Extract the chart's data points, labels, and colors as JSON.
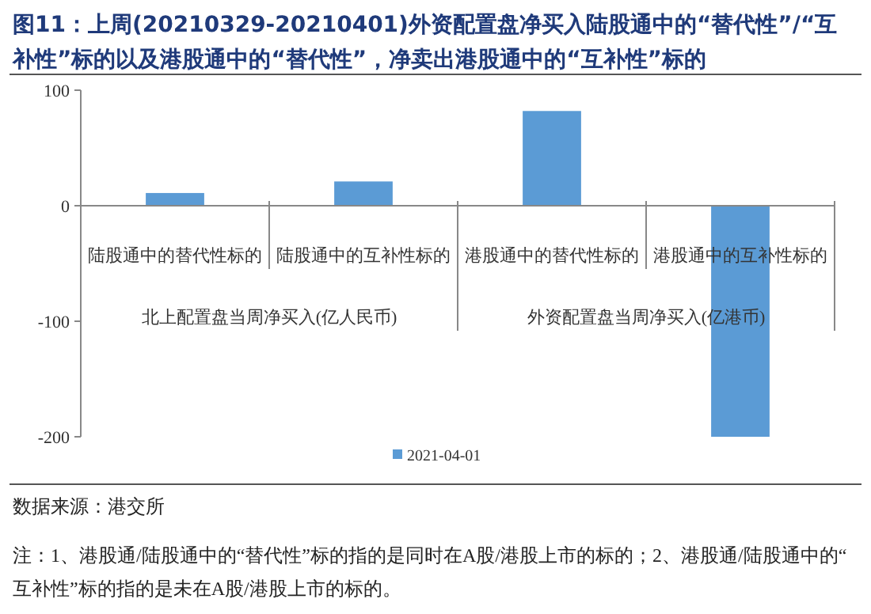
{
  "chart_data": {
    "type": "bar",
    "title": "图11：上周(20210329-20210401)外资配置盘净买入陆股通中的“替代性”/“互补性”标的以及港股通中的“替代性”，净卖出港股通中的“互补性”标的",
    "categories": [
      "陆股通中的替代性标的",
      "陆股通中的互补性标的",
      "港股通中的替代性标的",
      "港股通中的互补性标的"
    ],
    "series": [
      {
        "name": "2021-04-01",
        "color": "#5b9bd5",
        "values": [
          11,
          21,
          82,
          -200
        ]
      }
    ],
    "ylim": [
      -200,
      100
    ],
    "yticks": [
      -200,
      -100,
      0,
      100
    ],
    "legend": "bottom",
    "annotations": [
      "北上配置盘当周净买入(亿人民币)",
      "外资配置盘当周净买入(亿港币)",
      "数据来源：港交所",
      "注：1、港股通/陆股通中的“替代性”标的指的是同时在A股/港股上市的标的；2、港股通/陆股通中的“互补性”标的指的是未在A股/港股上市的标的。"
    ]
  }
}
